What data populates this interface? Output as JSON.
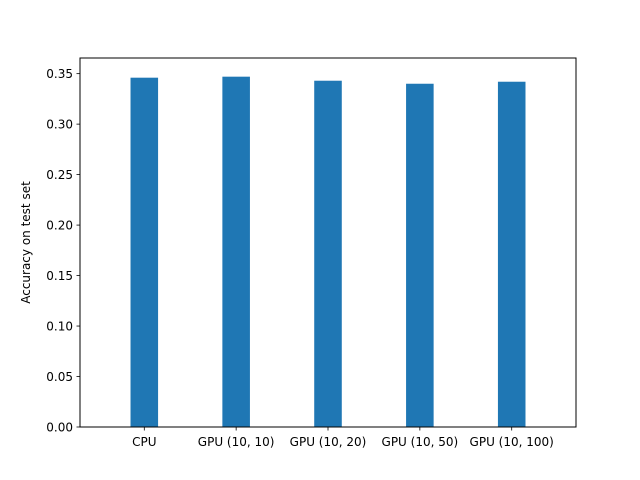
{
  "chart_data": {
    "type": "bar",
    "categories": [
      "CPU",
      "GPU (10, 10)",
      "GPU (10, 20)",
      "GPU (10, 50)",
      "GPU (10, 100)"
    ],
    "values": [
      0.346,
      0.347,
      0.343,
      0.34,
      0.342
    ],
    "title": "",
    "xlabel": "",
    "ylabel": "Accuracy on test set",
    "ylim": [
      0,
      0.3655
    ],
    "yticks": [
      "0.00",
      "0.05",
      "0.10",
      "0.15",
      "0.20",
      "0.25",
      "0.30",
      "0.35"
    ],
    "bar_color": "#1f77b4",
    "grid": false,
    "legend": "none"
  }
}
